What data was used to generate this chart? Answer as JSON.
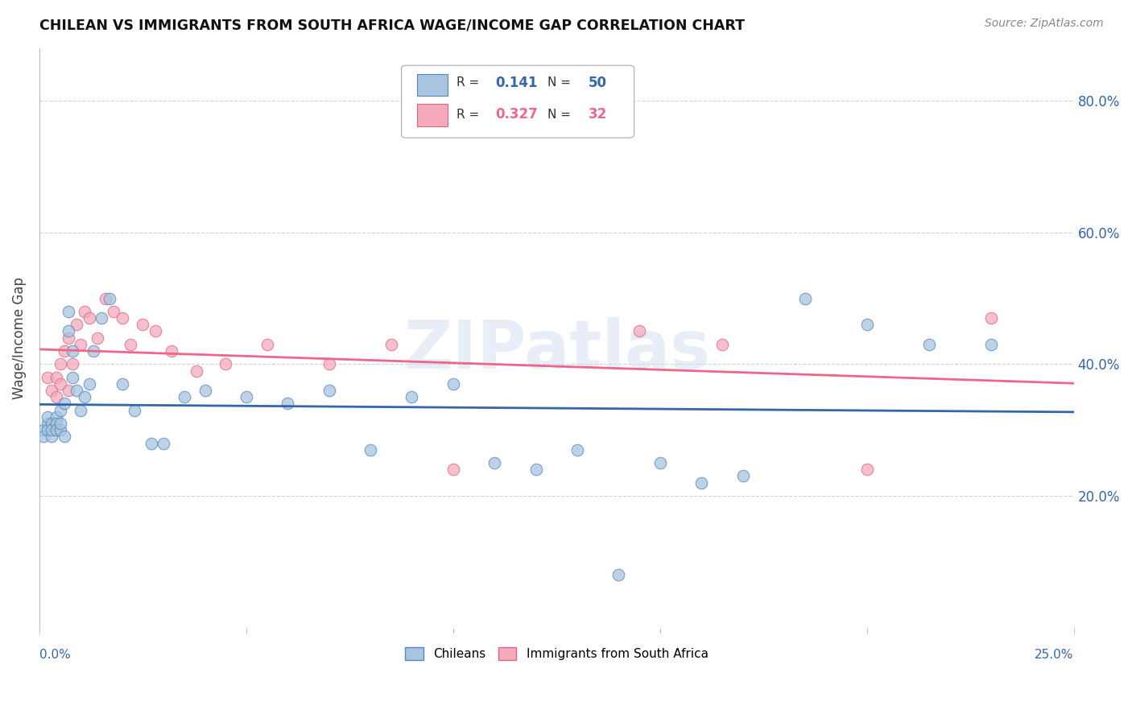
{
  "title": "CHILEAN VS IMMIGRANTS FROM SOUTH AFRICA WAGE/INCOME GAP CORRELATION CHART",
  "source": "Source: ZipAtlas.com",
  "ylabel": "Wage/Income Gap",
  "xmin": 0.0,
  "xmax": 0.25,
  "ymin": 0.0,
  "ymax": 0.88,
  "yticks": [
    0.2,
    0.4,
    0.6,
    0.8
  ],
  "ytick_labels": [
    "20.0%",
    "40.0%",
    "60.0%",
    "80.0%"
  ],
  "xticks": [
    0.0,
    0.05,
    0.1,
    0.15,
    0.2,
    0.25
  ],
  "color_blue": "#A8C4E0",
  "color_blue_edge": "#5588BB",
  "color_pink": "#F4AABB",
  "color_pink_edge": "#DD6688",
  "color_blue_line": "#3366AA",
  "color_pink_line": "#EE6688",
  "watermark": "ZIPatlas",
  "watermark_color": "#D0DFF0",
  "legend_r1": "0.141",
  "legend_n1": "50",
  "legend_r2": "0.327",
  "legend_n2": "32",
  "chileans_x": [
    0.001,
    0.001,
    0.002,
    0.002,
    0.002,
    0.003,
    0.003,
    0.003,
    0.004,
    0.004,
    0.004,
    0.005,
    0.005,
    0.005,
    0.006,
    0.006,
    0.007,
    0.007,
    0.008,
    0.008,
    0.009,
    0.01,
    0.011,
    0.012,
    0.013,
    0.015,
    0.017,
    0.02,
    0.023,
    0.027,
    0.03,
    0.035,
    0.04,
    0.05,
    0.06,
    0.07,
    0.08,
    0.09,
    0.1,
    0.11,
    0.12,
    0.13,
    0.14,
    0.15,
    0.16,
    0.17,
    0.185,
    0.2,
    0.215,
    0.23
  ],
  "chileans_y": [
    0.3,
    0.29,
    0.31,
    0.3,
    0.32,
    0.31,
    0.29,
    0.3,
    0.32,
    0.31,
    0.3,
    0.33,
    0.3,
    0.31,
    0.34,
    0.29,
    0.48,
    0.45,
    0.42,
    0.38,
    0.36,
    0.33,
    0.35,
    0.37,
    0.42,
    0.47,
    0.5,
    0.37,
    0.33,
    0.28,
    0.28,
    0.35,
    0.36,
    0.35,
    0.34,
    0.36,
    0.27,
    0.35,
    0.37,
    0.25,
    0.24,
    0.27,
    0.08,
    0.25,
    0.22,
    0.23,
    0.5,
    0.46,
    0.43,
    0.43
  ],
  "sa_x": [
    0.002,
    0.003,
    0.004,
    0.004,
    0.005,
    0.005,
    0.006,
    0.007,
    0.007,
    0.008,
    0.009,
    0.01,
    0.011,
    0.012,
    0.014,
    0.016,
    0.018,
    0.02,
    0.022,
    0.025,
    0.028,
    0.032,
    0.038,
    0.045,
    0.055,
    0.07,
    0.085,
    0.1,
    0.145,
    0.165,
    0.2,
    0.23
  ],
  "sa_y": [
    0.38,
    0.36,
    0.35,
    0.38,
    0.37,
    0.4,
    0.42,
    0.44,
    0.36,
    0.4,
    0.46,
    0.43,
    0.48,
    0.47,
    0.44,
    0.5,
    0.48,
    0.47,
    0.43,
    0.46,
    0.45,
    0.42,
    0.39,
    0.4,
    0.43,
    0.4,
    0.43,
    0.24,
    0.45,
    0.43,
    0.24,
    0.47
  ]
}
